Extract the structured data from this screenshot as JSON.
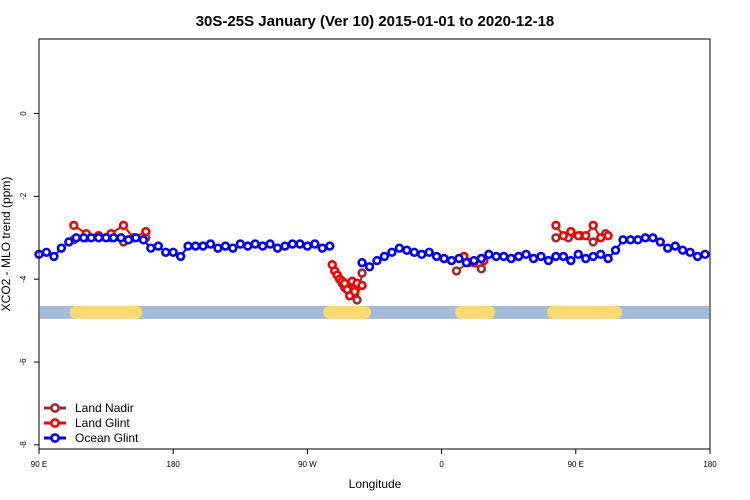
{
  "chart_data": {
    "type": "scatter",
    "title": "30S-25S January (Ver 10)   2015-01-01 to 2020-12-18",
    "xlabel": "Longitude",
    "ylabel": "XCO2 - MLO trend (ppm)",
    "xlim": [
      -90,
      180
    ],
    "ylim": [
      -8.1,
      1.8
    ],
    "x_ticks": [
      {
        "value": -90,
        "label": "90 E"
      },
      {
        "value": -36,
        "label": "180"
      },
      {
        "value": 18,
        "label": "90 W"
      },
      {
        "value": 72,
        "label": "0"
      },
      {
        "value": 126,
        "label": "90 E"
      },
      {
        "value": 180,
        "label": "180"
      }
    ],
    "y_ticks": [
      {
        "value": 0,
        "label": "0"
      },
      {
        "value": -2,
        "label": "-2"
      },
      {
        "value": -4,
        "label": "-4"
      },
      {
        "value": -6,
        "label": "-6"
      },
      {
        "value": -8,
        "label": "-8"
      }
    ],
    "grid": false,
    "legend_position": "bottom-left",
    "land_bar": {
      "y": -4.8,
      "ocean_color": "#a3bbd8",
      "land_color": "#fdd976",
      "land_segments": [
        [
          -75,
          -51
        ],
        [
          27,
          41
        ],
        [
          80,
          91
        ],
        [
          117,
          142
        ]
      ]
    },
    "series": [
      {
        "name": "Land Nadir",
        "color": "#9b2d2d",
        "x": [
          -76,
          -71,
          -66,
          -61,
          -56,
          -52,
          -47,
          30,
          31,
          32,
          33,
          34,
          36,
          38,
          40,
          78,
          83,
          88,
          118,
          123,
          128,
          133,
          138
        ],
        "y": [
          -3.05,
          -3.0,
          -2.95,
          -3.0,
          -3.1,
          -3.0,
          -3.0,
          -3.9,
          -4.0,
          -4.1,
          -4.2,
          -4.2,
          -4.05,
          -4.5,
          -3.85,
          -3.8,
          -3.6,
          -3.75,
          -3.0,
          -3.0,
          -2.95,
          -3.1,
          -2.9
        ]
      },
      {
        "name": "Land Glint",
        "color": "#f00000",
        "x": [
          -76,
          -71,
          -66,
          -61,
          -56,
          -52,
          -47,
          28,
          29,
          30,
          31,
          32,
          33,
          34,
          35,
          36,
          37,
          38,
          40,
          81,
          85,
          89,
          118,
          121,
          124,
          127,
          130,
          133,
          136,
          139
        ],
        "y": [
          -2.7,
          -2.9,
          -2.95,
          -2.9,
          -2.7,
          -3.0,
          -2.85,
          -3.65,
          -3.8,
          -3.9,
          -4.0,
          -4.05,
          -4.1,
          -4.25,
          -4.4,
          -4.05,
          -4.3,
          -4.1,
          -4.15,
          -3.45,
          -3.6,
          -3.55,
          -2.7,
          -2.95,
          -2.85,
          -2.95,
          -2.95,
          -2.7,
          -3.0,
          -2.95
        ]
      },
      {
        "name": "Ocean Glint",
        "color": "#0000ee",
        "x": [
          -90,
          -87,
          -84,
          -81,
          -78,
          -75,
          -72,
          -69,
          -66,
          -63,
          -60,
          -57,
          -54,
          -51,
          -48,
          -45,
          -42,
          -39,
          -36,
          -33,
          -30,
          -27,
          -24,
          -21,
          -18,
          -15,
          -12,
          -9,
          -6,
          -3,
          0,
          3,
          6,
          9,
          12,
          15,
          18,
          21,
          24,
          27,
          40,
          43,
          46,
          49,
          52,
          55,
          58,
          61,
          64,
          67,
          70,
          73,
          76,
          79,
          82,
          85,
          88,
          91,
          94,
          97,
          100,
          103,
          106,
          109,
          112,
          115,
          118,
          121,
          124,
          127,
          130,
          133,
          136,
          139,
          142,
          145,
          148,
          151,
          154,
          157,
          160,
          163,
          166,
          169,
          172,
          175,
          178
        ],
        "y": [
          -3.4,
          -3.35,
          -3.45,
          -3.25,
          -3.1,
          -3.0,
          -3.0,
          -3.0,
          -3.0,
          -3.0,
          -3.0,
          -3.0,
          -3.05,
          -3.0,
          -3.05,
          -3.25,
          -3.2,
          -3.35,
          -3.35,
          -3.45,
          -3.2,
          -3.2,
          -3.2,
          -3.15,
          -3.25,
          -3.2,
          -3.25,
          -3.15,
          -3.2,
          -3.15,
          -3.2,
          -3.15,
          -3.25,
          -3.2,
          -3.15,
          -3.15,
          -3.2,
          -3.15,
          -3.25,
          -3.2,
          -3.6,
          -3.7,
          -3.55,
          -3.45,
          -3.35,
          -3.25,
          -3.3,
          -3.35,
          -3.4,
          -3.35,
          -3.45,
          -3.5,
          -3.55,
          -3.5,
          -3.6,
          -3.55,
          -3.5,
          -3.4,
          -3.45,
          -3.45,
          -3.5,
          -3.45,
          -3.4,
          -3.5,
          -3.45,
          -3.55,
          -3.45,
          -3.45,
          -3.55,
          -3.4,
          -3.5,
          -3.45,
          -3.4,
          -3.5,
          -3.3,
          -3.05,
          -3.05,
          -3.05,
          -3.0,
          -3.0,
          -3.1,
          -3.25,
          -3.2,
          -3.3,
          -3.35,
          -3.45,
          -3.4
        ]
      }
    ]
  }
}
